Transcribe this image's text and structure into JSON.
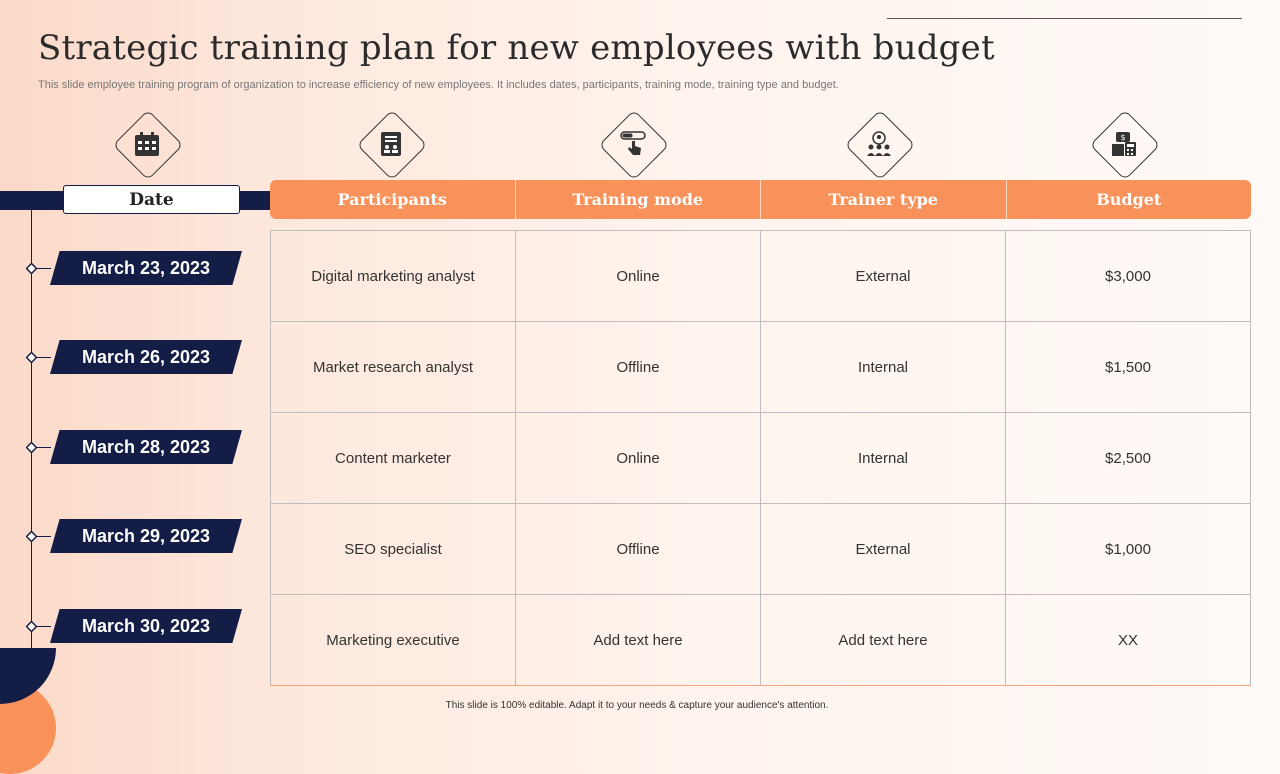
{
  "title": "Strategic training plan for new employees with budget",
  "subtitle": "This slide employee training program of organization to increase efficiency of new employees. It includes dates, participants, training mode, training type and budget.",
  "icons": [
    "calendar-icon",
    "training-document-icon",
    "click-mode-icon",
    "team-trainer-icon",
    "budget-calculator-icon"
  ],
  "date_header": "Date",
  "columns": [
    "Participants",
    "Training mode",
    "Trainer type",
    "Budget"
  ],
  "dates": [
    "March 23, 2023",
    "March 26, 2023",
    "March 28, 2023",
    "March 29, 2023",
    "March 30, 2023"
  ],
  "rows": [
    {
      "participant": "Digital marketing analyst",
      "mode": "Online",
      "trainer": "External",
      "budget": "$3,000"
    },
    {
      "participant": "Market research analyst",
      "mode": "Offline",
      "trainer": "Internal",
      "budget": "$1,500"
    },
    {
      "participant": "Content marketer",
      "mode": "Online",
      "trainer": "Internal",
      "budget": "$2,500"
    },
    {
      "participant": "SEO specialist",
      "mode": "Offline",
      "trainer": "External",
      "budget": "$1,000"
    },
    {
      "participant": "Marketing executive",
      "mode": "Add text here",
      "trainer": "Add text here",
      "budget": "XX"
    }
  ],
  "footer": "This slide is 100% editable. Adapt it to your needs & capture your audience's attention.",
  "colors": {
    "navy": "#141d45",
    "orange": "#f8915a"
  }
}
